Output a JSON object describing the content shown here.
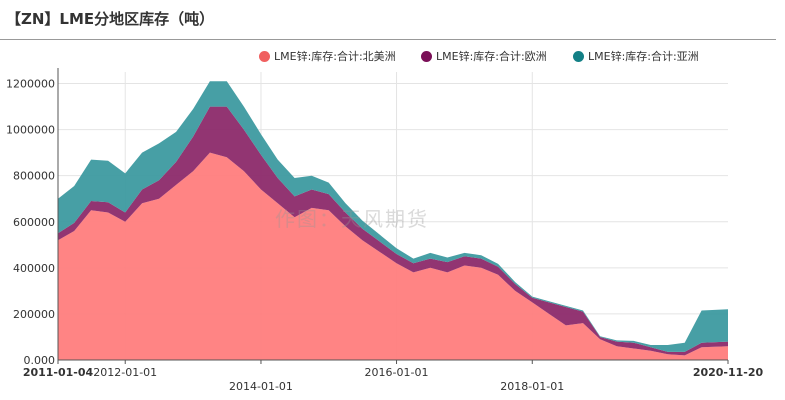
{
  "title": "【ZN】LME分地区库存（吨）",
  "watermark": "作图：天风期货",
  "colors": {
    "north_america": "#ff7d7d",
    "europe": "#8c2a6a",
    "asia": "#3d9aa0"
  },
  "legend": [
    {
      "label": "LME锌:库存:合计:北美洲",
      "color": "#f06060",
      "icon": "circle-icon"
    },
    {
      "label": "LME锌:库存:合计:欧洲",
      "color": "#7a0f57",
      "icon": "circle-icon"
    },
    {
      "label": "LME锌:库存:合计:亚洲",
      "color": "#138086",
      "icon": "circle-icon"
    }
  ],
  "chart_data": {
    "type": "area",
    "stacked": true,
    "title": "【ZN】LME分地区库存（吨）",
    "xlabel": "",
    "ylabel": "",
    "ylim": [
      0,
      1250000
    ],
    "xlim": [
      "2011-01-04",
      "2020-11-20"
    ],
    "grid": true,
    "legend_position": "top-right",
    "y_ticks": [
      "0.000",
      "200000",
      "400000",
      "600000",
      "800000",
      "1000000",
      "1200000"
    ],
    "x_ticks": [
      {
        "label": "2011-01-04",
        "bold": true
      },
      {
        "label": "2012-01-01",
        "bold": false
      },
      {
        "label": "2014-01-01",
        "bold": false
      },
      {
        "label": "2016-01-01",
        "bold": false
      },
      {
        "label": "2018-01-01",
        "bold": false
      },
      {
        "label": "2020-11-20",
        "bold": true
      }
    ],
    "x": [
      "2011-01-04",
      "2011-04-01",
      "2011-07-01",
      "2011-10-01",
      "2012-01-01",
      "2012-04-01",
      "2012-07-01",
      "2012-10-01",
      "2013-01-01",
      "2013-04-01",
      "2013-07-01",
      "2013-10-01",
      "2014-01-01",
      "2014-04-01",
      "2014-07-01",
      "2014-10-01",
      "2015-01-01",
      "2015-04-01",
      "2015-07-01",
      "2015-10-01",
      "2016-01-01",
      "2016-04-01",
      "2016-07-01",
      "2016-10-01",
      "2017-01-01",
      "2017-04-01",
      "2017-07-01",
      "2017-10-01",
      "2018-01-01",
      "2018-04-01",
      "2018-07-01",
      "2018-10-01",
      "2019-01-01",
      "2019-04-01",
      "2019-07-01",
      "2019-10-01",
      "2020-01-01",
      "2020-04-01",
      "2020-07-01",
      "2020-11-20"
    ],
    "series": [
      {
        "name": "LME锌:库存:合计:北美洲",
        "values": [
          520000,
          560000,
          650000,
          640000,
          600000,
          680000,
          700000,
          760000,
          820000,
          900000,
          880000,
          820000,
          740000,
          680000,
          620000,
          660000,
          650000,
          580000,
          520000,
          470000,
          420000,
          380000,
          400000,
          380000,
          410000,
          400000,
          370000,
          300000,
          250000,
          200000,
          150000,
          160000,
          90000,
          60000,
          50000,
          40000,
          25000,
          20000,
          55000,
          60000
        ]
      },
      {
        "name": "LME锌:库存:合计:欧洲",
        "values": [
          30000,
          35000,
          40000,
          45000,
          40000,
          60000,
          80000,
          100000,
          150000,
          200000,
          220000,
          180000,
          150000,
          110000,
          90000,
          80000,
          70000,
          60000,
          50000,
          45000,
          40000,
          40000,
          40000,
          45000,
          40000,
          40000,
          35000,
          30000,
          20000,
          50000,
          80000,
          50000,
          10000,
          20000,
          25000,
          15000,
          10000,
          15000,
          20000,
          20000
        ]
      },
      {
        "name": "LME锌:库存:合计:亚洲",
        "values": [
          150000,
          160000,
          180000,
          180000,
          170000,
          160000,
          160000,
          130000,
          120000,
          110000,
          110000,
          100000,
          90000,
          80000,
          80000,
          60000,
          50000,
          40000,
          35000,
          30000,
          25000,
          20000,
          25000,
          20000,
          15000,
          15000,
          12000,
          8000,
          5000,
          5000,
          5000,
          5000,
          3000,
          5000,
          8000,
          10000,
          30000,
          40000,
          140000,
          140000
        ]
      }
    ]
  }
}
